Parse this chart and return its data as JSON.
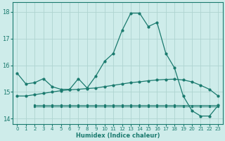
{
  "xlabel": "Humidex (Indice chaleur)",
  "background_color": "#ceecea",
  "grid_color": "#aed4d0",
  "line_color": "#1a7a6e",
  "main_x": [
    0,
    1,
    2,
    3,
    4,
    5,
    6,
    7,
    8,
    9,
    10,
    11,
    12,
    13,
    14,
    15,
    16,
    17,
    18,
    19,
    20,
    21,
    22,
    23
  ],
  "main_y": [
    15.7,
    15.3,
    15.35,
    15.5,
    15.2,
    15.1,
    15.1,
    15.5,
    15.15,
    15.6,
    16.15,
    16.45,
    17.3,
    17.95,
    17.95,
    17.45,
    17.6,
    16.45,
    15.9,
    14.85,
    14.3,
    14.1,
    14.1,
    14.5
  ],
  "avg_x": [
    0,
    1,
    2,
    3,
    4,
    5,
    6,
    7,
    8,
    9,
    10,
    11,
    12,
    13,
    14,
    15,
    16,
    17,
    18,
    19,
    20,
    21,
    22,
    23
  ],
  "avg_y": [
    14.85,
    14.85,
    14.9,
    14.95,
    15.0,
    15.05,
    15.08,
    15.1,
    15.13,
    15.15,
    15.2,
    15.25,
    15.3,
    15.35,
    15.38,
    15.42,
    15.45,
    15.47,
    15.48,
    15.45,
    15.38,
    15.25,
    15.1,
    14.85
  ],
  "min_x": [
    2,
    3,
    4,
    5,
    6,
    7,
    8,
    9,
    10,
    11,
    12,
    13,
    14,
    15,
    16,
    17,
    18,
    19,
    20,
    21,
    22,
    23
  ],
  "min_y": [
    14.45,
    14.45,
    14.45,
    14.45,
    14.45,
    14.45,
    14.45,
    14.45,
    14.45,
    14.45,
    14.45,
    14.45,
    14.45,
    14.45,
    14.45,
    14.45,
    14.45,
    14.45,
    14.45,
    14.45,
    14.45,
    14.45
  ],
  "flat_x": [
    2,
    3,
    4,
    5,
    6,
    7,
    8,
    9,
    10,
    11,
    12,
    13,
    14,
    15,
    16,
    17,
    18,
    23
  ],
  "flat_y": [
    14.5,
    14.5,
    14.5,
    14.5,
    14.5,
    14.5,
    14.5,
    14.5,
    14.5,
    14.5,
    14.5,
    14.5,
    14.5,
    14.5,
    14.5,
    14.5,
    14.5,
    14.5
  ],
  "ylim": [
    13.8,
    18.35
  ],
  "xlim": [
    -0.5,
    23.5
  ],
  "yticks": [
    14,
    15,
    16,
    17,
    18
  ],
  "xticks": [
    0,
    1,
    2,
    3,
    4,
    5,
    6,
    7,
    8,
    9,
    10,
    11,
    12,
    13,
    14,
    15,
    16,
    17,
    18,
    19,
    20,
    21,
    22,
    23
  ]
}
